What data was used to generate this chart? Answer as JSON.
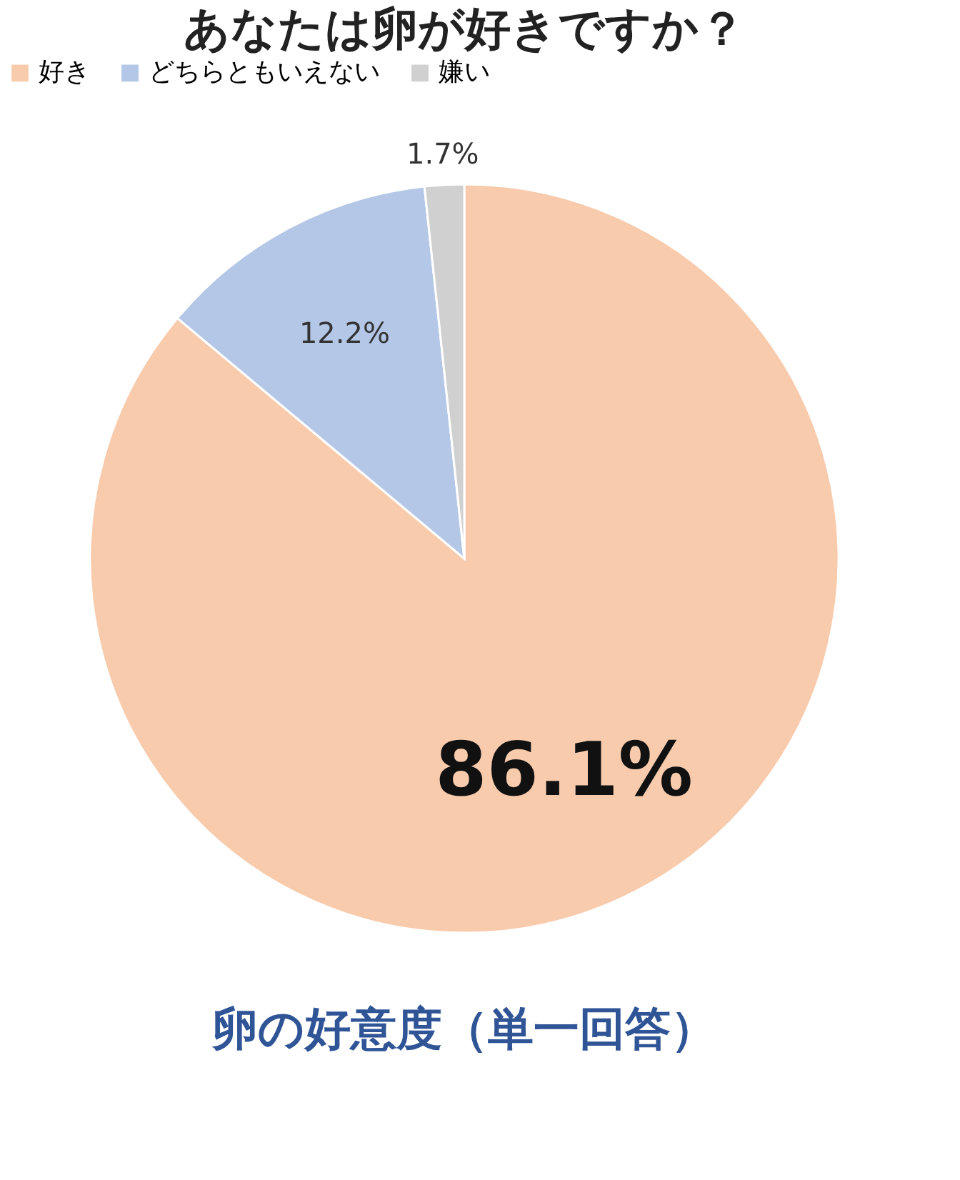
{
  "chart_data": {
    "type": "pie",
    "title": "あなたは卵が好きですか？",
    "categories": [
      "好き",
      "どちらともいえない",
      "嫌い"
    ],
    "values": [
      86.1,
      12.2,
      1.7
    ],
    "colors": [
      "#f8cbad",
      "#b4c7e7",
      "#d0d0d0"
    ],
    "value_labels": [
      "86.1%",
      "12.2%",
      "1.7%"
    ],
    "legend": "top",
    "annotations": [
      "卵の好意度（単一回答）"
    ]
  }
}
